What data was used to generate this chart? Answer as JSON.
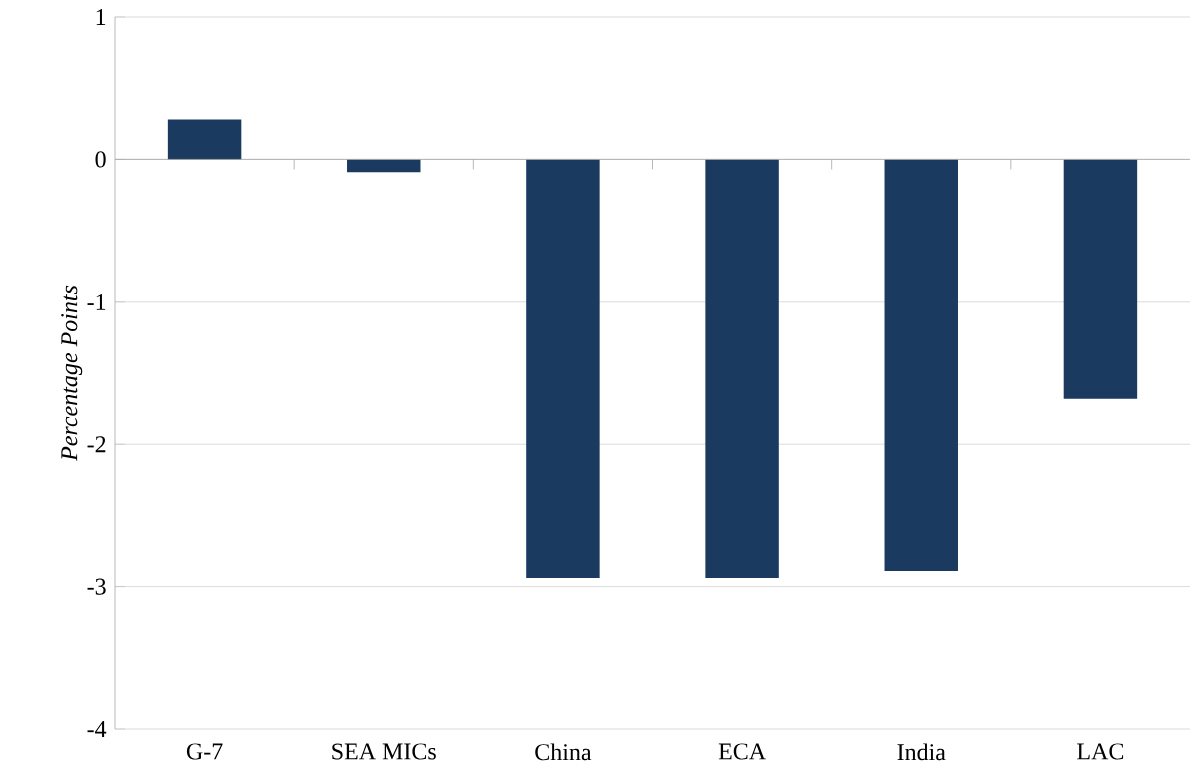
{
  "chart_data": {
    "type": "bar",
    "ylabel": "Percentage Points",
    "categories": [
      "G-7",
      "SEA MICs",
      "China",
      "ECA",
      "India",
      "LAC"
    ],
    "values": [
      0.28,
      -0.09,
      -2.94,
      -2.94,
      -2.89,
      -1.68
    ],
    "color": "#1b3a5f",
    "ylim": [
      -4,
      1
    ],
    "yticks": [
      -4,
      -3,
      -2,
      -1,
      0,
      1
    ],
    "grid": "y"
  }
}
